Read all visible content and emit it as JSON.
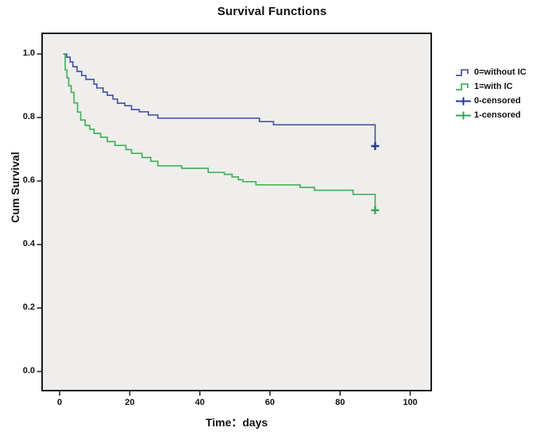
{
  "colors": {
    "series0": "#4a58a4",
    "series0_censor": "#2336a0",
    "series1": "#4aaf5c",
    "series1_censor": "#2fa751",
    "plot_bg": "#efeeec",
    "frame": "#1a1a1a",
    "tick": "#1a1a1a",
    "text": "#111111"
  },
  "legend": {
    "items": [
      {
        "label": "0=without IC",
        "symbol": "step-line",
        "series": 0
      },
      {
        "label": "1=with IC",
        "symbol": "step-line",
        "series": 1
      },
      {
        "label": "0-censored",
        "symbol": "censor-plus",
        "series": 0
      },
      {
        "label": "1-censored",
        "symbol": "censor-plus",
        "series": 1
      }
    ]
  },
  "chart_data": {
    "type": "line",
    "subtype": "kaplan-meier-step",
    "title": "Survival Functions",
    "xlabel": "Time：days",
    "ylabel": "Cum Survival",
    "xlim": [
      -5,
      106
    ],
    "ylim": [
      -0.06,
      1.065
    ],
    "x_ticks": [
      0,
      20,
      40,
      60,
      80,
      100
    ],
    "y_ticks": [
      0.0,
      0.2,
      0.4,
      0.6,
      0.8,
      1.0
    ],
    "grid": false,
    "legend_position": "right",
    "plot_background": "light-gray",
    "series": [
      {
        "name": "0=without IC",
        "points": [
          [
            1,
            1.0
          ],
          [
            2,
            0.99
          ],
          [
            3,
            0.975
          ],
          [
            3.8,
            0.96
          ],
          [
            5,
            0.945
          ],
          [
            6.3,
            0.932
          ],
          [
            7.5,
            0.92
          ],
          [
            9.8,
            0.905
          ],
          [
            10.6,
            0.893
          ],
          [
            12.4,
            0.88
          ],
          [
            13.6,
            0.87
          ],
          [
            15.2,
            0.858
          ],
          [
            16.5,
            0.845
          ],
          [
            18.6,
            0.837
          ],
          [
            20.5,
            0.825
          ],
          [
            22.7,
            0.818
          ],
          [
            25.3,
            0.808
          ],
          [
            28,
            0.798
          ],
          [
            57,
            0.787
          ],
          [
            61,
            0.777
          ],
          [
            90,
            0.72
          ]
        ],
        "censored": [
          [
            90,
            0.71
          ]
        ]
      },
      {
        "name": "1=with IC",
        "points": [
          [
            1,
            1.0
          ],
          [
            1.6,
            0.95
          ],
          [
            2.1,
            0.925
          ],
          [
            2.6,
            0.9
          ],
          [
            3.3,
            0.879
          ],
          [
            4.1,
            0.846
          ],
          [
            5.1,
            0.817
          ],
          [
            6,
            0.792
          ],
          [
            7.3,
            0.775
          ],
          [
            8.6,
            0.763
          ],
          [
            9.8,
            0.75
          ],
          [
            11.7,
            0.738
          ],
          [
            13.6,
            0.724
          ],
          [
            15.8,
            0.712
          ],
          [
            18.9,
            0.699
          ],
          [
            20.5,
            0.687
          ],
          [
            23.5,
            0.674
          ],
          [
            26,
            0.662
          ],
          [
            28,
            0.648
          ],
          [
            34.8,
            0.64
          ],
          [
            42.4,
            0.627
          ],
          [
            47,
            0.621
          ],
          [
            49.2,
            0.613
          ],
          [
            51,
            0.604
          ],
          [
            52.3,
            0.598
          ],
          [
            56,
            0.588
          ],
          [
            68.6,
            0.58
          ],
          [
            72.7,
            0.571
          ],
          [
            83.7,
            0.558
          ],
          [
            90,
            0.52
          ]
        ],
        "censored": [
          [
            90,
            0.508
          ]
        ]
      }
    ]
  }
}
